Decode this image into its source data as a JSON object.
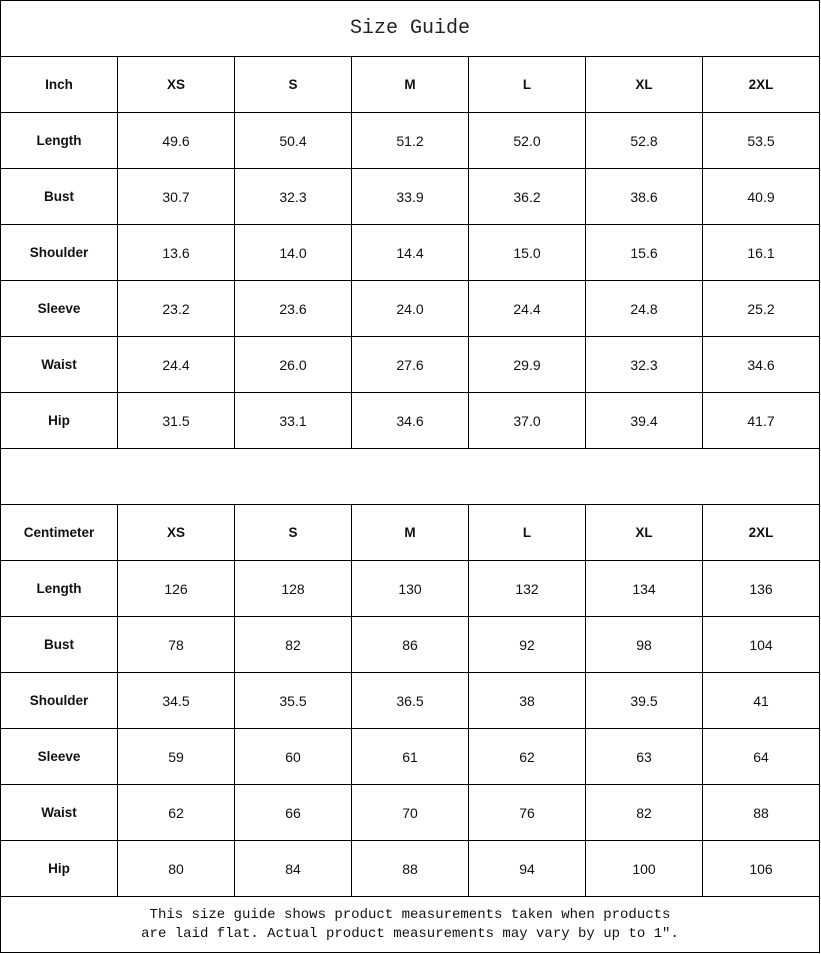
{
  "title": "Size Guide",
  "sizes": [
    "XS",
    "S",
    "M",
    "L",
    "XL",
    "2XL"
  ],
  "inch_table": {
    "unit_label": "Inch",
    "rows": [
      {
        "label": "Length",
        "values": [
          "49.6",
          "50.4",
          "51.2",
          "52.0",
          "52.8",
          "53.5"
        ]
      },
      {
        "label": "Bust",
        "values": [
          "30.7",
          "32.3",
          "33.9",
          "36.2",
          "38.6",
          "40.9"
        ]
      },
      {
        "label": "Shoulder",
        "values": [
          "13.6",
          "14.0",
          "14.4",
          "15.0",
          "15.6",
          "16.1"
        ]
      },
      {
        "label": "Sleeve",
        "values": [
          "23.2",
          "23.6",
          "24.0",
          "24.4",
          "24.8",
          "25.2"
        ]
      },
      {
        "label": "Waist",
        "values": [
          "24.4",
          "26.0",
          "27.6",
          "29.9",
          "32.3",
          "34.6"
        ]
      },
      {
        "label": "Hip",
        "values": [
          "31.5",
          "33.1",
          "34.6",
          "37.0",
          "39.4",
          "41.7"
        ]
      }
    ]
  },
  "cm_table": {
    "unit_label": "Centimeter",
    "rows": [
      {
        "label": "Length",
        "values": [
          "126",
          "128",
          "130",
          "132",
          "134",
          "136"
        ]
      },
      {
        "label": "Bust",
        "values": [
          "78",
          "82",
          "86",
          "92",
          "98",
          "104"
        ]
      },
      {
        "label": "Shoulder",
        "values": [
          "34.5",
          "35.5",
          "36.5",
          "38",
          "39.5",
          "41"
        ]
      },
      {
        "label": "Sleeve",
        "values": [
          "59",
          "60",
          "61",
          "62",
          "63",
          "64"
        ]
      },
      {
        "label": "Waist",
        "values": [
          "62",
          "66",
          "70",
          "76",
          "82",
          "88"
        ]
      },
      {
        "label": "Hip",
        "values": [
          "80",
          "84",
          "88",
          "94",
          "100",
          "106"
        ]
      }
    ]
  },
  "footer": {
    "line1": "This size guide shows product measurements taken when products",
    "line2": "are laid flat. Actual product measurements may vary by up to 1″."
  }
}
